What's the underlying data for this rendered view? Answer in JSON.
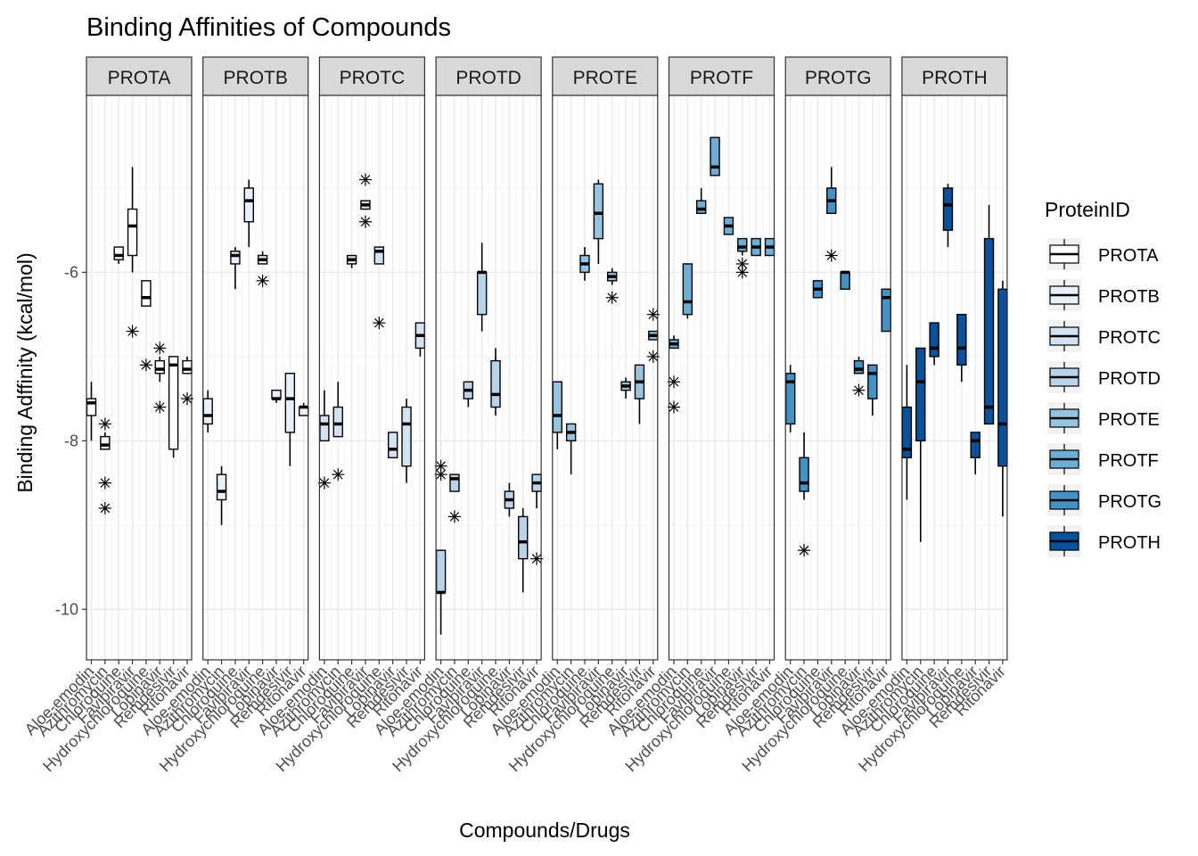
{
  "chart_data": {
    "type": "boxplot",
    "title": "Binding Affinities of Compounds",
    "xlabel": "Compounds/Drugs",
    "ylabel": "Binding Adffinity (kcal/mol)",
    "ylim": [
      -10.6,
      -3.9
    ],
    "yticks": [
      -10,
      -8,
      -6
    ],
    "grid": true,
    "legend": {
      "title": "ProteinID",
      "position": "right"
    },
    "categories": [
      "Aloe-emodin",
      "Azithromycin",
      "Chloroquine",
      "Favipiravir",
      "Hydroxychloroquine",
      "Lopinavir",
      "Remdesivir",
      "Ritonavir"
    ],
    "series": [
      {
        "name": "PROTA",
        "color": "#ffffff",
        "boxes": [
          {
            "lw": -8.0,
            "q1": -7.7,
            "med": -7.55,
            "q3": -7.5,
            "hw": -7.3,
            "out": []
          },
          {
            "lw": -8.1,
            "q1": -8.1,
            "med": -8.05,
            "q3": -7.95,
            "hw": -7.9,
            "out": [
              -7.8,
              -8.5,
              -8.8
            ]
          },
          {
            "lw": -5.9,
            "q1": -5.85,
            "med": -5.8,
            "q3": -5.7,
            "hw": -5.7,
            "out": []
          },
          {
            "lw": -6.0,
            "q1": -5.8,
            "med": -5.45,
            "q3": -5.25,
            "hw": -4.75,
            "out": [
              -6.7
            ]
          },
          {
            "lw": -6.4,
            "q1": -6.4,
            "med": -6.3,
            "q3": -6.1,
            "hw": -6.1,
            "out": [
              -7.1
            ]
          },
          {
            "lw": -7.3,
            "q1": -7.2,
            "med": -7.15,
            "q3": -7.05,
            "hw": -7.0,
            "out": [
              -6.9,
              -7.6
            ]
          },
          {
            "lw": -8.2,
            "q1": -8.1,
            "med": -7.1,
            "q3": -7.0,
            "hw": -7.0,
            "out": []
          },
          {
            "lw": -7.2,
            "q1": -7.2,
            "med": -7.15,
            "q3": -7.05,
            "hw": -7.0,
            "out": [
              -7.5
            ]
          }
        ]
      },
      {
        "name": "PROTB",
        "color": "#e8f1fa",
        "boxes": [
          {
            "lw": -7.9,
            "q1": -7.8,
            "med": -7.7,
            "q3": -7.5,
            "hw": -7.4,
            "out": []
          },
          {
            "lw": -9.0,
            "q1": -8.7,
            "med": -8.6,
            "q3": -8.4,
            "hw": -8.3,
            "out": []
          },
          {
            "lw": -6.2,
            "q1": -5.9,
            "med": -5.8,
            "q3": -5.75,
            "hw": -5.7,
            "out": []
          },
          {
            "lw": -5.7,
            "q1": -5.4,
            "med": -5.15,
            "q3": -5.0,
            "hw": -4.9,
            "out": []
          },
          {
            "lw": -5.9,
            "q1": -5.9,
            "med": -5.85,
            "q3": -5.8,
            "hw": -5.75,
            "out": [
              -6.1
            ]
          },
          {
            "lw": -7.55,
            "q1": -7.5,
            "med": -7.5,
            "q3": -7.4,
            "hw": -7.4,
            "out": []
          },
          {
            "lw": -8.3,
            "q1": -7.9,
            "med": -7.5,
            "q3": -7.2,
            "hw": -7.2,
            "out": []
          },
          {
            "lw": -7.7,
            "q1": -7.7,
            "med": -7.6,
            "q3": -7.6,
            "hw": -7.55,
            "out": []
          }
        ]
      },
      {
        "name": "PROTC",
        "color": "#d2e3f3",
        "boxes": [
          {
            "lw": -8.0,
            "q1": -8.0,
            "med": -7.8,
            "q3": -7.7,
            "hw": -7.4,
            "out": [
              -8.5
            ]
          },
          {
            "lw": -7.95,
            "q1": -7.95,
            "med": -7.8,
            "q3": -7.6,
            "hw": -7.3,
            "out": [
              -8.4
            ]
          },
          {
            "lw": -5.95,
            "q1": -5.9,
            "med": -5.85,
            "q3": -5.8,
            "hw": -5.8,
            "out": []
          },
          {
            "lw": -5.25,
            "q1": -5.25,
            "med": -5.2,
            "q3": -5.15,
            "hw": -5.15,
            "out": [
              -4.9,
              -5.4
            ]
          },
          {
            "lw": -5.9,
            "q1": -5.9,
            "med": -5.75,
            "q3": -5.7,
            "hw": -5.7,
            "out": [
              -6.6
            ]
          },
          {
            "lw": -8.2,
            "q1": -8.2,
            "med": -8.1,
            "q3": -7.9,
            "hw": -7.9,
            "out": []
          },
          {
            "lw": -8.5,
            "q1": -8.3,
            "med": -7.8,
            "q3": -7.6,
            "hw": -7.5,
            "out": []
          },
          {
            "lw": -7.0,
            "q1": -6.9,
            "med": -6.75,
            "q3": -6.6,
            "hw": -6.6,
            "out": []
          }
        ]
      },
      {
        "name": "PROTD",
        "color": "#b7d4ea",
        "boxes": [
          {
            "lw": -10.3,
            "q1": -9.8,
            "med": -9.8,
            "q3": -9.3,
            "hw": -9.3,
            "out": [
              -8.3,
              -8.4
            ]
          },
          {
            "lw": -8.6,
            "q1": -8.6,
            "med": -8.45,
            "q3": -8.4,
            "hw": -8.4,
            "out": [
              -8.9
            ]
          },
          {
            "lw": -7.6,
            "q1": -7.5,
            "med": -7.4,
            "q3": -7.3,
            "hw": -7.3,
            "out": []
          },
          {
            "lw": -6.7,
            "q1": -6.5,
            "med": -6.0,
            "q3": -6.0,
            "hw": -5.65,
            "out": []
          },
          {
            "lw": -7.7,
            "q1": -7.6,
            "med": -7.45,
            "q3": -7.05,
            "hw": -6.9,
            "out": []
          },
          {
            "lw": -8.9,
            "q1": -8.8,
            "med": -8.7,
            "q3": -8.6,
            "hw": -8.5,
            "out": []
          },
          {
            "lw": -9.8,
            "q1": -9.4,
            "med": -9.2,
            "q3": -8.9,
            "hw": -8.8,
            "out": []
          },
          {
            "lw": -8.8,
            "q1": -8.6,
            "med": -8.5,
            "q3": -8.4,
            "hw": -8.4,
            "out": [
              -9.4
            ]
          }
        ]
      },
      {
        "name": "PROTE",
        "color": "#94c4df",
        "boxes": [
          {
            "lw": -8.1,
            "q1": -7.9,
            "med": -7.7,
            "q3": -7.3,
            "hw": -7.3,
            "out": []
          },
          {
            "lw": -8.4,
            "q1": -8.0,
            "med": -7.9,
            "q3": -7.8,
            "hw": -7.8,
            "out": []
          },
          {
            "lw": -6.1,
            "q1": -6.0,
            "med": -5.9,
            "q3": -5.8,
            "hw": -5.7,
            "out": []
          },
          {
            "lw": -5.9,
            "q1": -5.6,
            "med": -5.3,
            "q3": -4.95,
            "hw": -4.9,
            "out": []
          },
          {
            "lw": -6.15,
            "q1": -6.1,
            "med": -6.05,
            "q3": -6.0,
            "hw": -5.95,
            "out": [
              -6.3
            ]
          },
          {
            "lw": -7.5,
            "q1": -7.4,
            "med": -7.35,
            "q3": -7.3,
            "hw": -7.25,
            "out": []
          },
          {
            "lw": -7.8,
            "q1": -7.5,
            "med": -7.3,
            "q3": -7.1,
            "hw": -7.1,
            "out": []
          },
          {
            "lw": -6.8,
            "q1": -6.8,
            "med": -6.75,
            "q3": -6.7,
            "hw": -6.7,
            "out": [
              -6.5,
              -7.0
            ]
          }
        ]
      },
      {
        "name": "PROTF",
        "color": "#6baed6",
        "boxes": [
          {
            "lw": -6.9,
            "q1": -6.9,
            "med": -6.85,
            "q3": -6.8,
            "hw": -6.75,
            "out": [
              -7.3,
              -7.6
            ]
          },
          {
            "lw": -6.55,
            "q1": -6.5,
            "med": -6.35,
            "q3": -5.9,
            "hw": -5.9,
            "out": []
          },
          {
            "lw": -5.3,
            "q1": -5.3,
            "med": -5.25,
            "q3": -5.15,
            "hw": -5.0,
            "out": []
          },
          {
            "lw": -4.85,
            "q1": -4.85,
            "med": -4.75,
            "q3": -4.4,
            "hw": -4.4,
            "out": []
          },
          {
            "lw": -5.55,
            "q1": -5.55,
            "med": -5.45,
            "q3": -5.35,
            "hw": -5.35,
            "out": []
          },
          {
            "lw": -5.8,
            "q1": -5.75,
            "med": -5.7,
            "q3": -5.6,
            "hw": -5.6,
            "out": [
              -5.9,
              -6.0
            ]
          },
          {
            "lw": -5.8,
            "q1": -5.8,
            "med": -5.7,
            "q3": -5.6,
            "hw": -5.6,
            "out": []
          },
          {
            "lw": -5.8,
            "q1": -5.8,
            "med": -5.7,
            "q3": -5.6,
            "hw": -5.6,
            "out": []
          }
        ]
      },
      {
        "name": "PROTG",
        "color": "#4292c6",
        "boxes": [
          {
            "lw": -7.9,
            "q1": -7.8,
            "med": -7.3,
            "q3": -7.2,
            "hw": -7.1,
            "out": []
          },
          {
            "lw": -8.7,
            "q1": -8.6,
            "med": -8.5,
            "q3": -8.2,
            "hw": -7.9,
            "out": [
              -9.3
            ]
          },
          {
            "lw": -6.3,
            "q1": -6.3,
            "med": -6.2,
            "q3": -6.1,
            "hw": -6.1,
            "out": []
          },
          {
            "lw": -5.3,
            "q1": -5.3,
            "med": -5.15,
            "q3": -5.0,
            "hw": -4.75,
            "out": [
              -5.8
            ]
          },
          {
            "lw": -6.2,
            "q1": -6.2,
            "med": -6.0,
            "q3": -6.0,
            "hw": -6.0,
            "out": []
          },
          {
            "lw": -7.2,
            "q1": -7.2,
            "med": -7.15,
            "q3": -7.05,
            "hw": -7.0,
            "out": [
              -7.4
            ]
          },
          {
            "lw": -7.7,
            "q1": -7.5,
            "med": -7.2,
            "q3": -7.1,
            "hw": -7.1,
            "out": []
          },
          {
            "lw": -6.7,
            "q1": -6.7,
            "med": -6.3,
            "q3": -6.2,
            "hw": -6.2,
            "out": []
          }
        ]
      },
      {
        "name": "PROTH",
        "color": "#08519c",
        "boxes": [
          {
            "lw": -8.7,
            "q1": -8.2,
            "med": -8.1,
            "q3": -7.6,
            "hw": -7.1,
            "out": []
          },
          {
            "lw": -9.2,
            "q1": -8.0,
            "med": -7.3,
            "q3": -6.9,
            "hw": -6.9,
            "out": []
          },
          {
            "lw": -7.1,
            "q1": -7.0,
            "med": -6.9,
            "q3": -6.6,
            "hw": -6.6,
            "out": []
          },
          {
            "lw": -5.7,
            "q1": -5.5,
            "med": -5.2,
            "q3": -5.0,
            "hw": -4.95,
            "out": []
          },
          {
            "lw": -7.3,
            "q1": -7.1,
            "med": -6.9,
            "q3": -6.5,
            "hw": -6.5,
            "out": []
          },
          {
            "lw": -8.4,
            "q1": -8.2,
            "med": -8.0,
            "q3": -7.9,
            "hw": -7.9,
            "out": []
          },
          {
            "lw": -7.8,
            "q1": -7.8,
            "med": -7.6,
            "q3": -5.6,
            "hw": -5.2,
            "out": []
          },
          {
            "lw": -8.9,
            "q1": -8.3,
            "med": -7.8,
            "q3": -6.2,
            "hw": -6.1,
            "out": []
          }
        ]
      }
    ]
  }
}
